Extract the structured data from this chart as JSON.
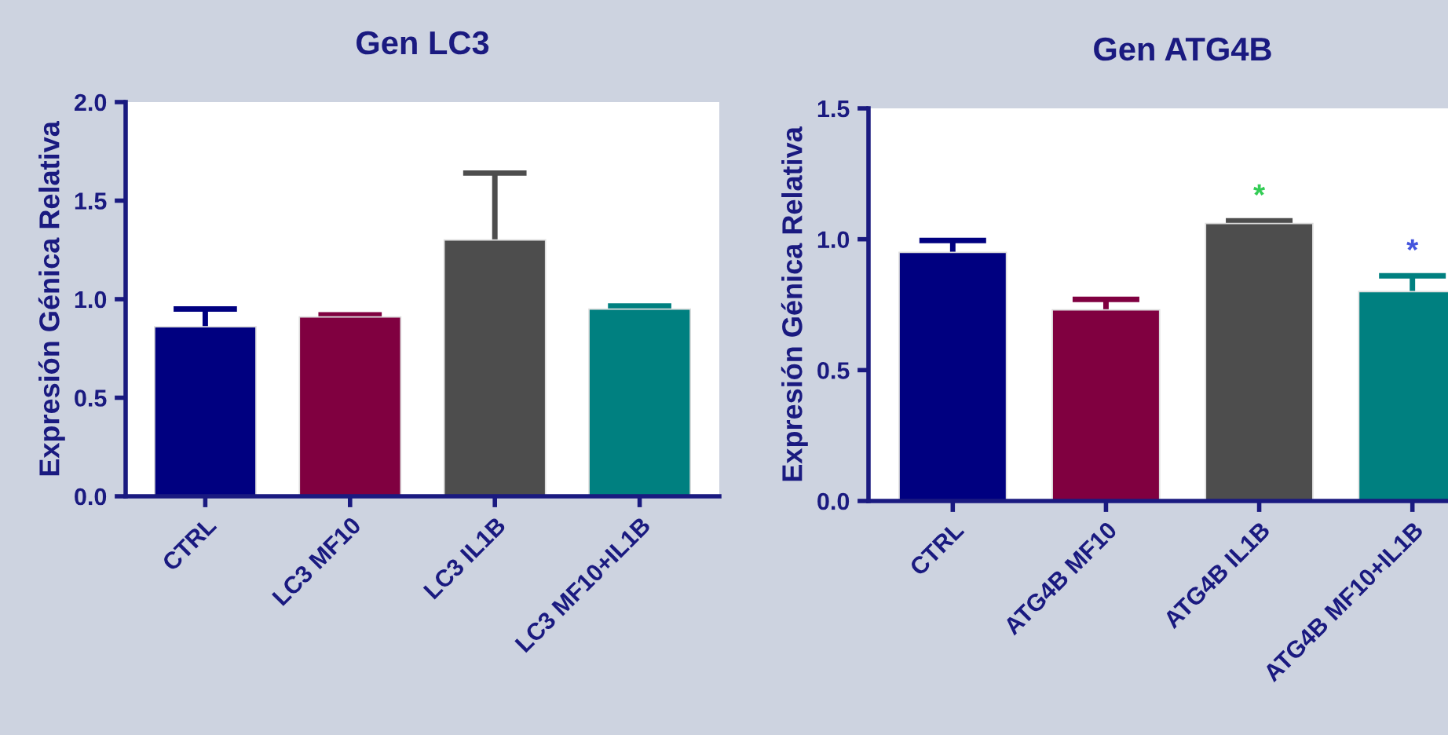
{
  "chart_data": [
    {
      "type": "bar",
      "title": "Gen LC3",
      "ylabel": "Expresión Génica Relativa",
      "categories": [
        "CTRL",
        "LC3 MF10",
        "LC3 IL1B",
        "LC3 MF10+IL1B"
      ],
      "values": [
        0.86,
        0.91,
        1.3,
        0.95
      ],
      "errors": [
        [
          0.86,
          0.95
        ],
        [
          0.91,
          0.92
        ],
        [
          1.3,
          1.64
        ],
        [
          0.95,
          0.965
        ]
      ],
      "colors": [
        "#000080",
        "#800040",
        "#4d4d4d",
        "#008080"
      ],
      "ylim": [
        0,
        2.0
      ],
      "yticks": [
        {
          "value": 0,
          "label": "0.0"
        },
        {
          "value": 0.5,
          "label": "0.5"
        },
        {
          "value": 1,
          "label": "1.0"
        },
        {
          "value": 1.5,
          "label": "1.5"
        },
        {
          "value": 2,
          "label": "2.0"
        }
      ],
      "grid": false,
      "legend": false
    },
    {
      "type": "bar",
      "title": "Gen ATG4B",
      "ylabel": "Expresión Génica Relativa",
      "categories": [
        "CTRL",
        "ATG4B MF10",
        "ATG4B IL1B",
        "ATG4B MF10+IL1B"
      ],
      "values": [
        0.95,
        0.73,
        1.06,
        0.8
      ],
      "errors": [
        [
          0.95,
          0.995
        ],
        [
          0.73,
          0.77
        ],
        [
          1.06,
          1.07
        ],
        [
          0.8,
          0.86
        ]
      ],
      "colors": [
        "#000080",
        "#800040",
        "#4d4d4d",
        "#008080"
      ],
      "ylim": [
        0,
        1.5
      ],
      "yticks": [
        {
          "value": 0,
          "label": "0.0"
        },
        {
          "value": 0.5,
          "label": "0.5"
        },
        {
          "value": 1,
          "label": "1.0"
        },
        {
          "value": 1.5,
          "label": "1.5"
        }
      ],
      "grid": false,
      "legend": false,
      "value_labels": [
        null,
        null,
        "*",
        "*"
      ]
    }
  ]
}
